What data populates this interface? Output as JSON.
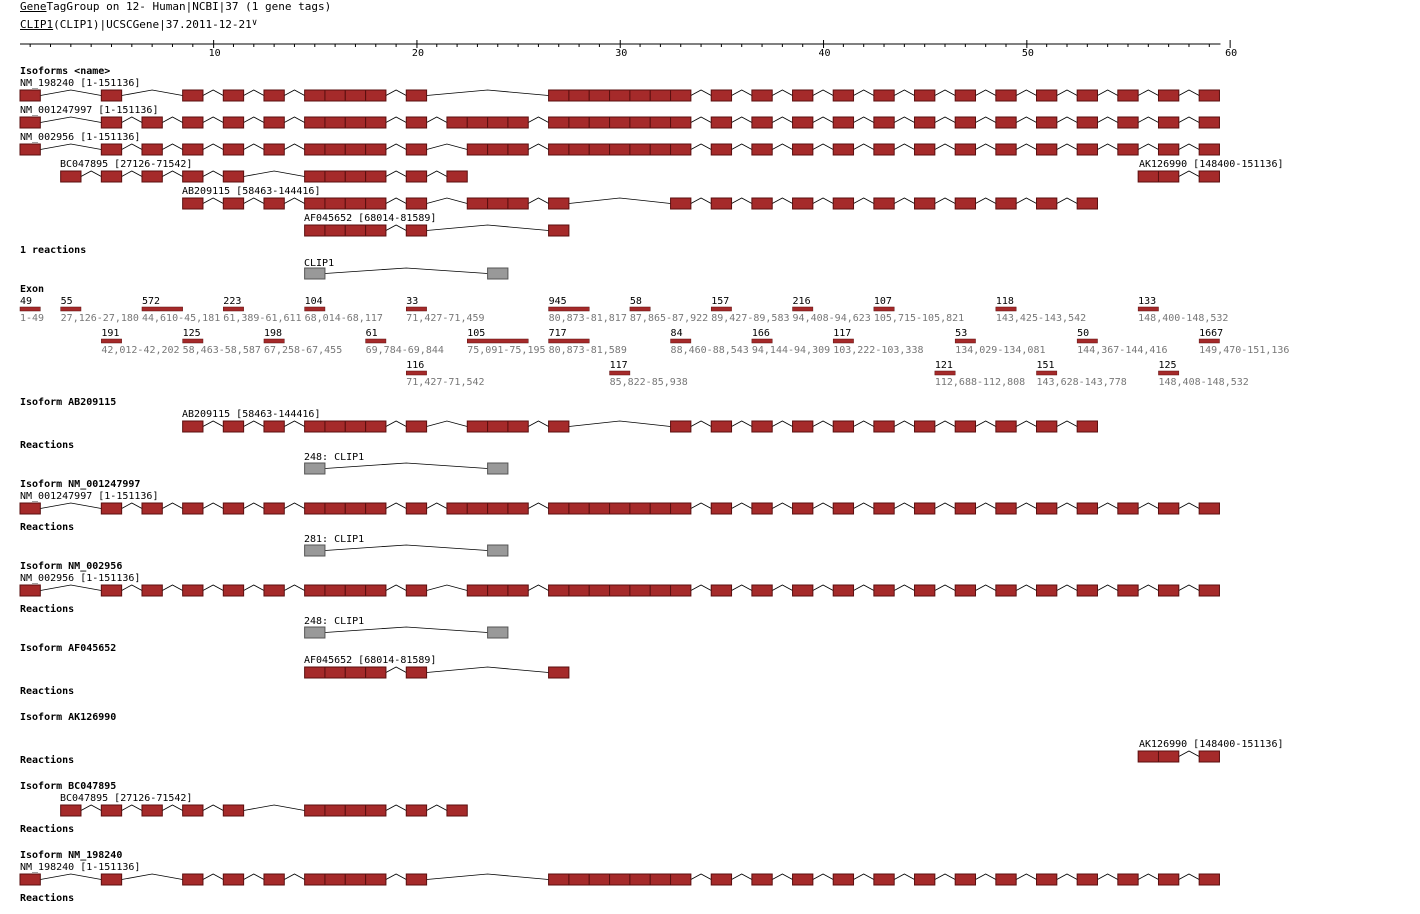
{
  "header": {
    "group_link": "Gene",
    "group_title": "TagGroup on 12- Human|NCBI|37 (1 gene tags)",
    "gene_link": "CLIP1",
    "gene_title": "(CLIP1)|UCSCGene|37.2011-12-21",
    "dropdown_icon": "y-chevron-icon"
  },
  "colors": {
    "exon": "#a52a2a",
    "exon_border": "#5a0f0f",
    "reaction": "#999999",
    "reaction_border": "#555555",
    "muted_text": "#777777"
  },
  "axis": {
    "min": 1,
    "max": 60,
    "ticks": [
      10,
      20,
      30,
      40,
      50,
      60
    ]
  },
  "sections": {
    "isoforms": "Isoforms <name>",
    "reactions_count": "1 reactions",
    "exon": "Exon",
    "reactions": "Reactions"
  },
  "isoforms": [
    {
      "label": "NM_198240 [1-151136]",
      "exons": [
        1,
        5,
        9,
        11,
        13,
        15,
        16,
        17,
        18,
        20,
        27,
        28,
        29,
        30,
        31,
        32,
        33,
        35,
        37,
        39,
        41,
        43,
        45,
        47,
        49,
        51,
        53,
        55,
        57,
        59
      ]
    },
    {
      "label": "NM_001247997 [1-151136]",
      "exons": [
        1,
        5,
        7,
        9,
        11,
        13,
        15,
        16,
        17,
        18,
        20,
        22,
        23,
        24,
        25,
        27,
        28,
        29,
        30,
        31,
        32,
        33,
        35,
        37,
        39,
        41,
        43,
        45,
        47,
        49,
        51,
        53,
        55,
        57,
        59
      ]
    },
    {
      "label": "NM_002956 [1-151136]",
      "exons": [
        1,
        5,
        7,
        9,
        11,
        13,
        15,
        16,
        17,
        18,
        20,
        23,
        24,
        25,
        27,
        28,
        29,
        30,
        31,
        32,
        33,
        35,
        37,
        39,
        41,
        43,
        45,
        47,
        49,
        51,
        53,
        55,
        57,
        59
      ]
    },
    {
      "label": "BC047895 [27126-71542]",
      "exons": [
        3,
        5,
        7,
        9,
        11,
        15,
        16,
        17,
        18,
        20,
        22
      ]
    },
    {
      "label": "AK126990 [148400-151136]",
      "exons": [
        56,
        57,
        59
      ]
    },
    {
      "label": "AB209115 [58463-144416]",
      "exons": [
        9,
        11,
        13,
        15,
        16,
        17,
        18,
        20,
        23,
        24,
        25,
        27,
        33,
        35,
        37,
        39,
        41,
        43,
        45,
        47,
        49,
        51,
        53
      ]
    },
    {
      "label": "AF045652 [68014-81589]",
      "exons": [
        15,
        16,
        17,
        18,
        20,
        27
      ]
    }
  ],
  "reaction_track": {
    "label": "CLIP1",
    "exons": [
      15,
      24
    ]
  },
  "exon_table": [
    {
      "idx": 1,
      "len": "49",
      "range": "1-49"
    },
    {
      "idx": 3,
      "len": "55",
      "range": "27,126-27,180"
    },
    {
      "idx": 5,
      "len": "191",
      "range": "42,012-42,202"
    },
    {
      "idx": 7,
      "len": "572",
      "range": "44,610-45,181"
    },
    {
      "idx": 9,
      "len": "125",
      "range": "58,463-58,587"
    },
    {
      "idx": 11,
      "len": "223",
      "range": "61,389-61,611"
    },
    {
      "idx": 13,
      "len": "198",
      "range": "67,258-67,455"
    },
    {
      "idx": 15,
      "len": "104",
      "range": "68,014-68,117"
    },
    {
      "idx": 18,
      "len": "61",
      "range": "69,784-69,844"
    },
    {
      "idx": 20,
      "len": "33",
      "range": "71,427-71,459"
    },
    {
      "idx": 20,
      "len": "116",
      "range": "71,427-71,542"
    },
    {
      "idx": 23,
      "len": "105",
      "range": "75,091-75,195"
    },
    {
      "idx": 27,
      "len": "945",
      "range": "80,873-81,817"
    },
    {
      "idx": 27,
      "len": "717",
      "range": "80,873-81,589"
    },
    {
      "idx": 30,
      "len": "117",
      "range": "85,822-85,938"
    },
    {
      "idx": 31,
      "len": "58",
      "range": "87,865-87,922"
    },
    {
      "idx": 33,
      "len": "84",
      "range": "88,460-88,543"
    },
    {
      "idx": 35,
      "len": "157",
      "range": "89,427-89,583"
    },
    {
      "idx": 37,
      "len": "166",
      "range": "94,144-94,309"
    },
    {
      "idx": 39,
      "len": "216",
      "range": "94,408-94,623"
    },
    {
      "idx": 41,
      "len": "117",
      "range": "103,222-103,338"
    },
    {
      "idx": 43,
      "len": "107",
      "range": "105,715-105,821"
    },
    {
      "idx": 46,
      "len": "121",
      "range": "112,688-112,808"
    },
    {
      "idx": 47,
      "len": "53",
      "range": "134,029-134,081"
    },
    {
      "idx": 49,
      "len": "118",
      "range": "143,425-143,542"
    },
    {
      "idx": 51,
      "len": "151",
      "range": "143,628-143,778"
    },
    {
      "idx": 53,
      "len": "50",
      "range": "144,367-144,416"
    },
    {
      "idx": 56,
      "len": "133",
      "range": "148,400-148,532"
    },
    {
      "idx": 57,
      "len": "125",
      "range": "148,408-148,532"
    },
    {
      "idx": 59,
      "len": "1667",
      "range": "149,470-151,136"
    }
  ],
  "details": [
    {
      "title": "Isoform AB209115",
      "label": "AB209115 [58463-144416]",
      "isoform": 5,
      "reaction": "248: CLIP1"
    },
    {
      "title": "Isoform NM_001247997",
      "label": "NM_001247997 [1-151136]",
      "isoform": 1,
      "reaction": "281: CLIP1"
    },
    {
      "title": "Isoform NM_002956",
      "label": "NM_002956 [1-151136]",
      "isoform": 2,
      "reaction": "248: CLIP1"
    },
    {
      "title": "Isoform AF045652",
      "label": "AF045652 [68014-81589]",
      "isoform": 6,
      "reaction": null
    },
    {
      "title": "Isoform AK126990",
      "label": "AK126990 [148400-151136]",
      "isoform": 4,
      "reaction": null
    },
    {
      "title": "Isoform BC047895",
      "label": "BC047895 [27126-71542]",
      "isoform": 3,
      "reaction": null
    },
    {
      "title": "Isoform NM_198240",
      "label": "NM_198240 [1-151136]",
      "isoform": 0,
      "reaction": null
    }
  ]
}
